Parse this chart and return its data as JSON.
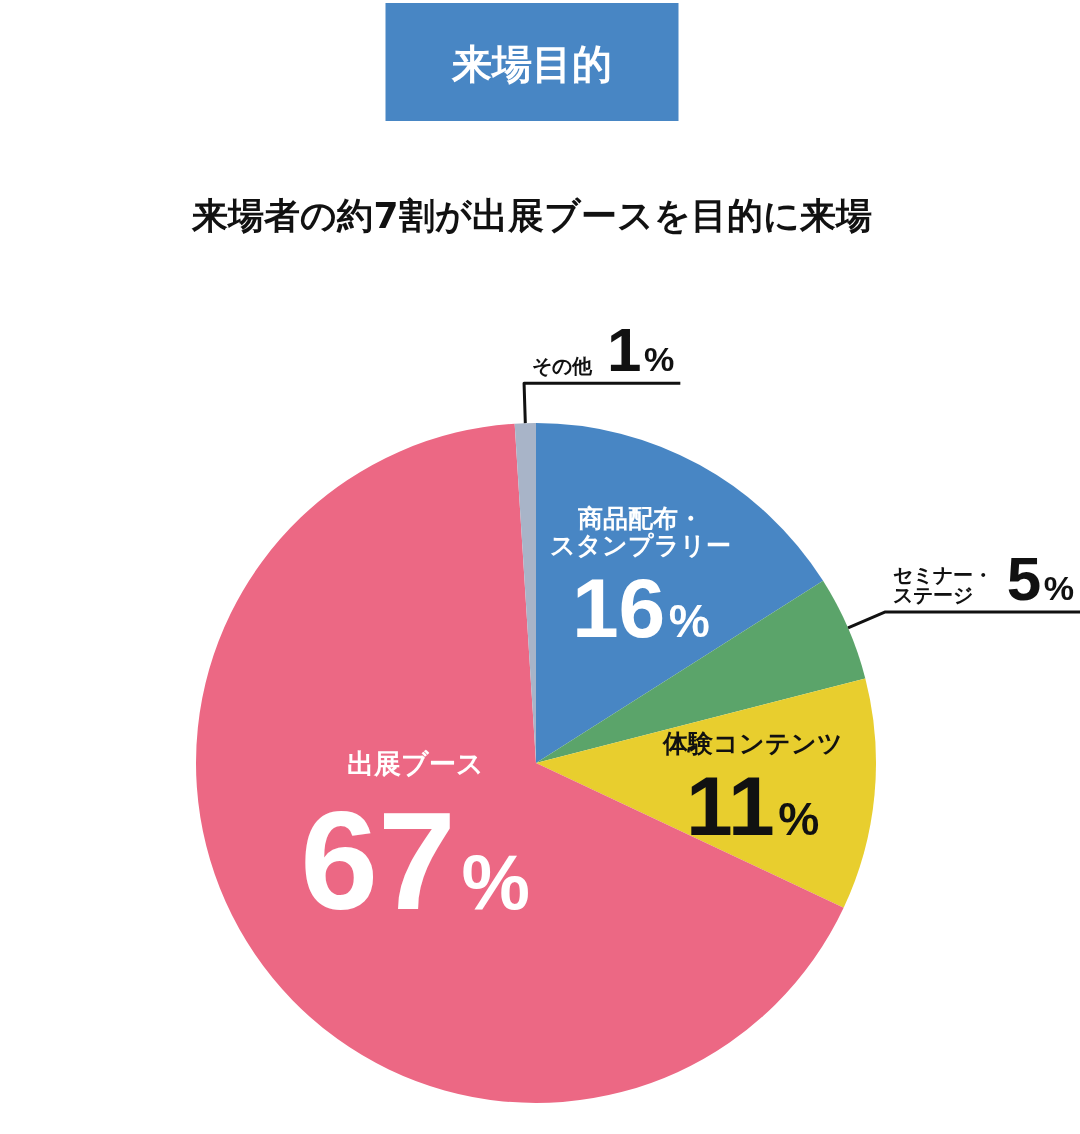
{
  "chart_data": {
    "type": "pie",
    "title": "来場目的",
    "subtitle": "来場者の約7割が出展ブースを目的に来場",
    "categories": [
      "商品配布・スタンプラリー",
      "セミナー・ステージ",
      "体験コンテンツ",
      "出展ブース",
      "その他"
    ],
    "values": [
      16,
      5,
      11,
      67,
      1
    ],
    "colors": [
      "#4886c4",
      "#5ba46a",
      "#e8ce2e",
      "#ec6884",
      "#a8b4c8"
    ],
    "value_labels": [
      "16%",
      "5%",
      "11%",
      "67%",
      "1%"
    ]
  }
}
